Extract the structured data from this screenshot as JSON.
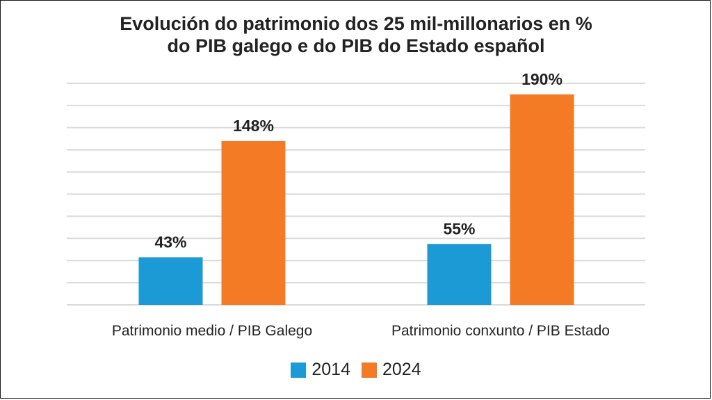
{
  "chart_data": {
    "type": "bar",
    "title": [
      "Evolución do patrimonio dos 25 mil-millonarios en %",
      "do PIB galego e do PIB do Estado español"
    ],
    "categories": [
      "Patrimonio medio / PIB Galego",
      "Patrimonio conxunto / PIB Estado"
    ],
    "series": [
      {
        "name": "2014",
        "values": [
          43,
          55
        ],
        "labels": [
          "43%",
          "55%"
        ],
        "color": "#1b9ad6"
      },
      {
        "name": "2024",
        "values": [
          148,
          190
        ],
        "labels": [
          "148%",
          "190%"
        ],
        "color": "#f47a25"
      }
    ],
    "ylim": [
      0,
      200
    ],
    "grid": true,
    "legend": "bottom"
  }
}
